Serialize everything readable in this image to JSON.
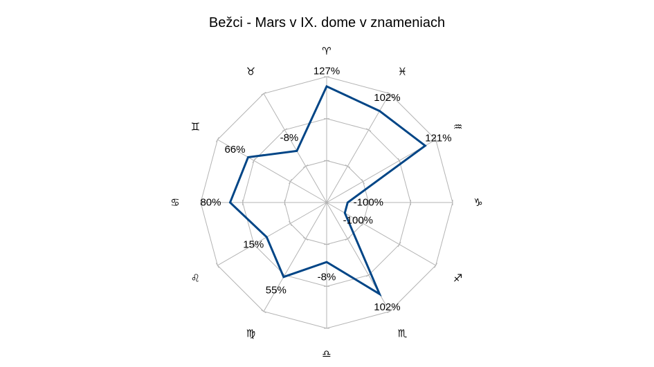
{
  "chart_data": {
    "type": "radar",
    "title": "Bežci - Mars v IX. dome v znameniach",
    "categories": [
      "♈",
      "♓",
      "♒",
      "♑",
      "♐",
      "♏",
      "♎",
      "♍",
      "♌",
      "♋",
      "♊",
      "♉"
    ],
    "series": [
      {
        "values": [
          127,
          102,
          121,
          -100,
          -100,
          102,
          -8,
          55,
          15,
          80,
          66,
          -8
        ],
        "labels": [
          "127%",
          "102%",
          "121%",
          "-100%",
          "-100%",
          "102%",
          "-8%",
          "55%",
          "15%",
          "80%",
          "66%",
          "-8%"
        ],
        "color": "#004586"
      }
    ],
    "rlim": [
      -150,
      150
    ],
    "grid": true,
    "legend": "none",
    "colors": {
      "line": "#004586",
      "grid": "#b3b3b3",
      "text": "#000000"
    }
  }
}
